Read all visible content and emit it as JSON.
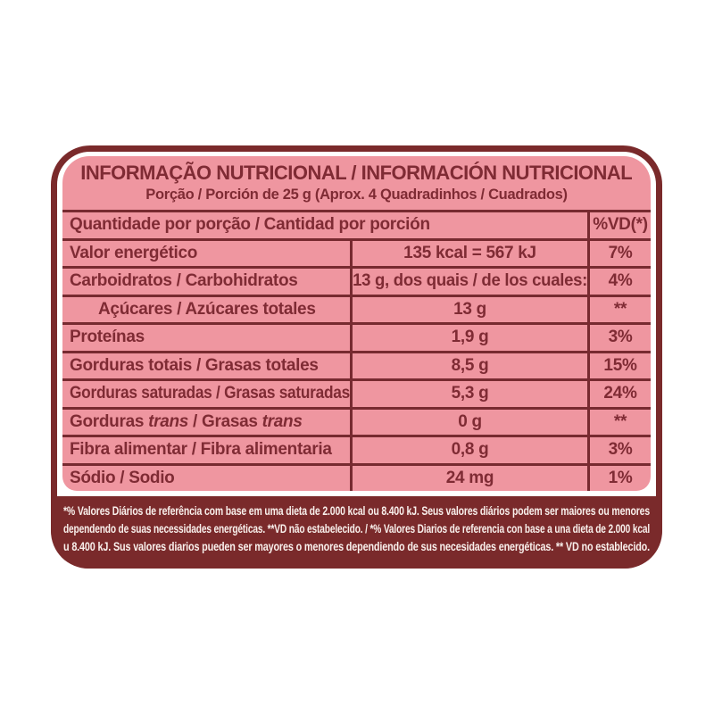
{
  "colors": {
    "maroon": "#7a2a2b",
    "pink": "#ef96a0",
    "table_text": "#7f2b34",
    "footnote_text": "#f9f0ec"
  },
  "label": {
    "header": {
      "title": "INFORMAÇÃO NUTRICIONAL / INFORMACIÓN NUTRICIONAL",
      "subtitle": "Porção / Porción de 25 g (Aprox. 4 Quadradinhos / Cuadrados)"
    },
    "table": {
      "header_row": {
        "label": "Quantidade por porção / Cantidad por porción",
        "vd": "%VD(*)"
      },
      "rows": [
        {
          "name": "Valor energético",
          "value": "135 kcal = 567 kJ",
          "vd": "7%"
        },
        {
          "name": "Carboidratos / Carbohidratos",
          "value": "13 g, dos quais / de los cuales:",
          "vd": "4%"
        },
        {
          "name": "Açúcares / Azúcares totales",
          "value": "13 g",
          "vd": "**",
          "indent": true
        },
        {
          "name": "Proteínas",
          "value": "1,9 g",
          "vd": "3%"
        },
        {
          "name": "Gorduras totais / Grasas totales",
          "value": "8,5 g",
          "vd": "15%"
        },
        {
          "name": "Gorduras saturadas / Grasas saturadas",
          "value": "5,3 g",
          "vd": "24%"
        },
        {
          "name": "Gorduras trans / Grasas trans",
          "value": "0 g",
          "vd": "**",
          "italic_term": "trans"
        },
        {
          "name": "Fibra alimentar / Fibra alimentaria",
          "value": "0,8 g",
          "vd": "3%"
        },
        {
          "name": "Sódio / Sodio",
          "value": "24 mg",
          "vd": "1%"
        }
      ]
    },
    "footnote_lines": [
      "*% Valores Diários de referência com base em uma dieta de 2.000 kcal ou 8.400 kJ. Seus valores diários podem ser maiores ou menores",
      "dependendo de suas necessidades energéticas. **VD não estabelecido. / *% Valores Diarios de referencia con base a una dieta de 2.000 kcal",
      "u 8.400 kJ. Sus valores diarios pueden ser mayores o menores dependiendo de sus necesidades energéticas. ** VD no establecido."
    ]
  }
}
